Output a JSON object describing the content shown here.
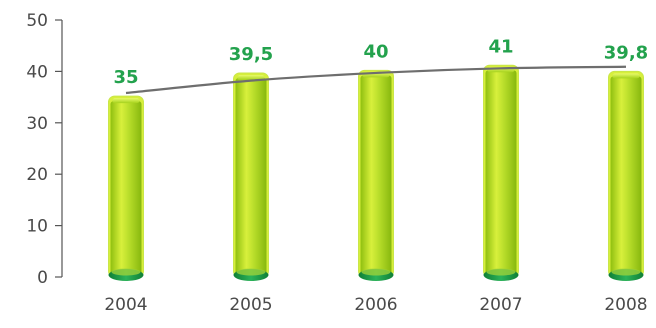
{
  "chart_data": {
    "type": "bar",
    "categories": [
      "2004",
      "2005",
      "2006",
      "2007",
      "2008"
    ],
    "values": [
      35,
      39.5,
      40,
      41,
      39.8
    ],
    "data_labels": [
      "35",
      "39,5",
      "40",
      "41",
      "39,8"
    ],
    "yticks": [
      0,
      10,
      20,
      30,
      40,
      50
    ],
    "ylim": [
      0,
      50
    ],
    "title": "",
    "xlabel": "",
    "ylabel": "",
    "grid": false,
    "legend": "none",
    "trend_line": {
      "type": "line",
      "values": [
        35.8,
        38.2,
        39.7,
        40.6,
        40.9
      ]
    },
    "colors": {
      "bar_top": "#d7ef3c",
      "bar_mid": "#9dcc1a",
      "bar_edge": "#1f9a44",
      "bar_base": "#189446",
      "data_label": "#23a24d",
      "trend_line": "#6e6e6e",
      "axis": "#555555",
      "tick_label": "#4a4a4a"
    }
  }
}
